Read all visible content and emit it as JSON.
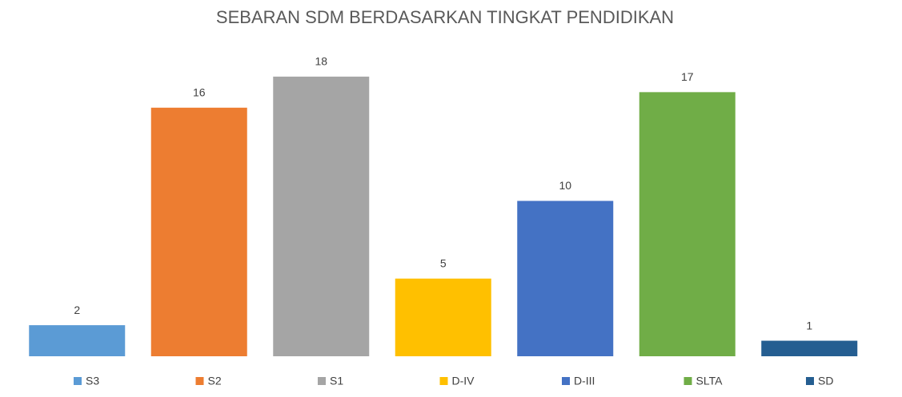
{
  "chart_data": {
    "type": "bar",
    "title": "SEBARAN SDM BERDASARKAN TINGKAT PENDIDIKAN",
    "categories": [
      "S3",
      "S2",
      "S1",
      "D-IV",
      "D-III",
      "SLTA",
      "SD"
    ],
    "values": [
      2,
      16,
      18,
      5,
      10,
      17,
      1
    ],
    "colors": [
      "#5b9bd5",
      "#ed7d31",
      "#a5a5a5",
      "#ffc000",
      "#4472c4",
      "#70ad47",
      "#255e91"
    ],
    "ylim": [
      0,
      20
    ],
    "legend": "bottom"
  }
}
